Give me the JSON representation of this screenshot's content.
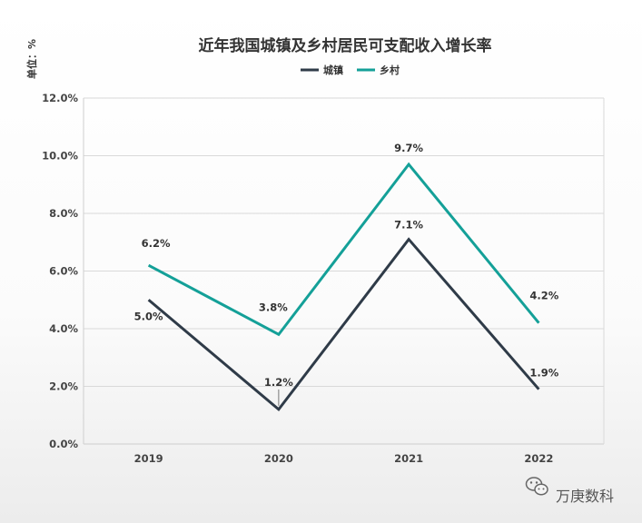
{
  "unit_label": "单位：%",
  "watermark": {
    "text": "万庚数科",
    "icon": "wechat-icon"
  },
  "chart_data": {
    "type": "line",
    "title": "近年我国城镇及乡村居民可支配收入增长率",
    "xlabel": "",
    "ylabel": "",
    "categories": [
      "2019",
      "2020",
      "2021",
      "2022"
    ],
    "ylim": [
      0,
      12
    ],
    "yticks": [
      "0.0%",
      "2.0%",
      "4.0%",
      "6.0%",
      "8.0%",
      "10.0%",
      "12.0%"
    ],
    "grid": true,
    "legend_position": "top-center",
    "series": [
      {
        "name": "城镇",
        "color": "#2f3b48",
        "values": [
          5.0,
          1.2,
          7.1,
          1.9
        ],
        "labels": [
          "5.0%",
          "1.2%",
          "7.1%",
          "1.9%"
        ]
      },
      {
        "name": "乡村",
        "color": "#14a098",
        "values": [
          6.2,
          3.8,
          9.7,
          4.2
        ],
        "labels": [
          "6.2%",
          "3.8%",
          "9.7%",
          "4.2%"
        ]
      }
    ]
  }
}
